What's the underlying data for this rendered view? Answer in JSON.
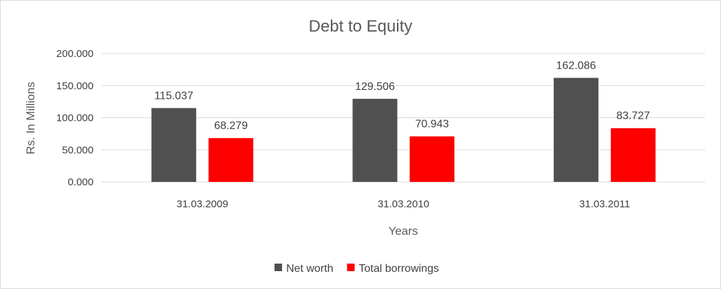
{
  "chart_data": {
    "type": "bar",
    "title": "Debt to Equity",
    "xlabel": "Years",
    "ylabel": "Rs. In Millions",
    "categories": [
      "31.03.2009",
      "31.03.2010",
      "31.03.2011"
    ],
    "series": [
      {
        "name": "Net worth",
        "color": "#505050",
        "values": [
          115.037,
          129.506,
          162.086
        ],
        "labels": [
          "115.037",
          "129.506",
          "162.086"
        ]
      },
      {
        "name": "Total borrowings",
        "color": "#ff0000",
        "values": [
          68.279,
          70.943,
          83.727
        ],
        "labels": [
          "68.279",
          "70.943",
          "83.727"
        ]
      }
    ],
    "ylim": [
      0,
      200
    ],
    "yticks": [
      "0.000",
      "50.000",
      "100.000",
      "150.000",
      "200.000"
    ],
    "ytick_values": [
      0,
      50,
      100,
      150,
      200
    ],
    "grid": true,
    "legend_position": "bottom"
  }
}
